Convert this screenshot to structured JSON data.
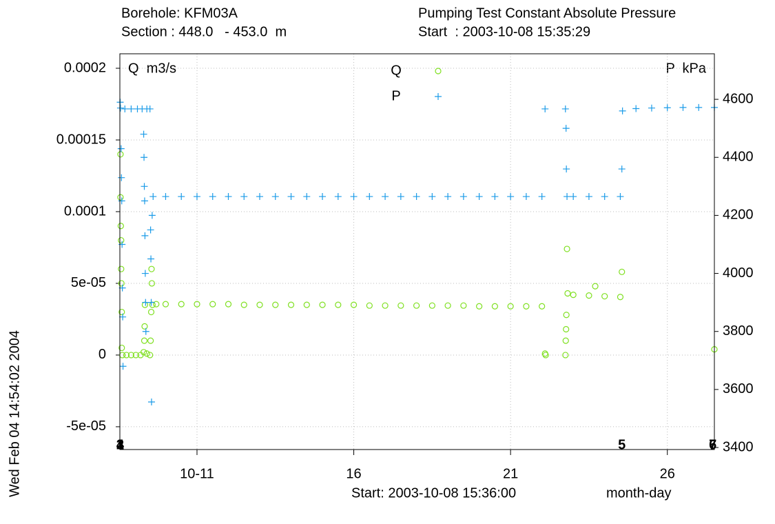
{
  "chart_data": {
    "type": "scatter",
    "header": {
      "borehole": "Borehole: KFM03A",
      "section": "Section : 448.0   - 453.0  m",
      "test": "Pumping Test Constant Absolute Pressure",
      "start": "Start  : 2003-10-08 15:35:29"
    },
    "y_label": "Q  m3/s",
    "y2_label": "P  kPa",
    "x_label": "month-day",
    "footer": "Start: 2003-10-08 15:36:00",
    "timestamp": "Wed Feb 04 14:54:02 2004",
    "xlim": [
      8.54,
      27.5
    ],
    "xticks": [
      {
        "value": 11,
        "label": "10-11"
      },
      16,
      21,
      26
    ],
    "ylim": [
      -6.59e-05,
      0.0002101
    ],
    "yticks": [
      {
        "value": -5e-05,
        "label": "-5e-05"
      },
      0,
      {
        "value": 5e-05,
        "label": "5e-05"
      },
      0.0001,
      0.00015,
      0.0002
    ],
    "y2lim": [
      3393,
      4757
    ],
    "y2ticks": [
      3400,
      3600,
      3800,
      4000,
      4200,
      4400,
      4600
    ],
    "grid": true,
    "markers": [
      {
        "x": 8.55,
        "label": "1"
      },
      {
        "x": 8.55,
        "label": "2"
      },
      {
        "x": 8.55,
        "label": "3"
      },
      {
        "x": 8.55,
        "label": "4"
      },
      {
        "x": 24.55,
        "label": "5"
      },
      {
        "x": 27.45,
        "label": "6"
      },
      {
        "x": 27.45,
        "label": "7"
      }
    ],
    "series": [
      {
        "name": "Q",
        "color": "#7fe020",
        "marker": "circle",
        "axis": "y",
        "x": [
          8.56,
          8.56,
          8.57,
          8.58,
          8.58,
          8.59,
          8.6,
          8.6,
          8.62,
          8.75,
          8.9,
          9.05,
          9.2,
          9.3,
          9.32,
          9.33,
          9.34,
          9.4,
          9.5,
          9.52,
          9.54,
          9.55,
          9.56,
          9.58,
          9.7,
          10,
          10.5,
          11,
          11.5,
          12,
          12.5,
          13,
          13.5,
          14,
          14.5,
          15,
          15.5,
          16,
          16.5,
          17,
          17.5,
          18,
          18.5,
          19,
          19.5,
          20,
          20.5,
          21,
          21.5,
          22,
          22.1,
          22.12,
          22.75,
          22.76,
          22.77,
          22.78,
          22.8,
          22.82,
          23,
          23.5,
          24,
          24.5,
          23.7,
          24.55,
          27.5
        ],
        "values": [
          0.00014,
          0.00011,
          9e-05,
          8e-05,
          6e-05,
          5e-05,
          3e-05,
          5e-06,
          0,
          0,
          0,
          0,
          0,
          2e-06,
          1e-05,
          2e-05,
          3.5e-05,
          1e-06,
          0,
          1e-05,
          3e-05,
          6e-05,
          5e-05,
          3.5e-05,
          3.55e-05,
          3.55e-05,
          3.55e-05,
          3.55e-05,
          3.55e-05,
          3.55e-05,
          3.5e-05,
          3.5e-05,
          3.5e-05,
          3.5e-05,
          3.5e-05,
          3.5e-05,
          3.5e-05,
          3.5e-05,
          3.45e-05,
          3.45e-05,
          3.45e-05,
          3.45e-05,
          3.45e-05,
          3.45e-05,
          3.45e-05,
          3.4e-05,
          3.4e-05,
          3.4e-05,
          3.4e-05,
          3.4e-05,
          1e-06,
          0,
          0,
          1e-05,
          1.8e-05,
          2.8e-05,
          7.4e-05,
          4.3e-05,
          4.2e-05,
          4.15e-05,
          4.1e-05,
          4.05e-05,
          4.8e-05,
          5.8e-05,
          4e-06
        ]
      },
      {
        "name": "P",
        "color": "#1a9be8",
        "marker": "plus",
        "axis": "y2",
        "x": [
          8.55,
          8.56,
          8.58,
          8.59,
          8.6,
          8.61,
          8.62,
          8.63,
          8.64,
          8.7,
          8.9,
          9.1,
          9.25,
          9.3,
          9.31,
          9.32,
          9.33,
          9.34,
          9.35,
          9.36,
          9.37,
          9.4,
          9.5,
          9.52,
          9.53,
          9.54,
          9.55,
          9.57,
          9.6,
          10,
          10.5,
          11,
          11.5,
          12,
          12.5,
          13,
          13.5,
          14,
          14.5,
          15,
          15.5,
          16,
          16.5,
          17,
          17.5,
          18,
          18.5,
          19,
          19.5,
          20,
          20.5,
          21,
          21.5,
          22,
          22.1,
          22.75,
          22.77,
          22.78,
          22.8,
          23,
          23.5,
          24,
          24.5,
          24.55,
          24.57,
          25,
          25.5,
          26,
          26.5,
          27,
          27.5
        ],
        "values": [
          4590,
          4570,
          4430,
          4330,
          4250,
          4100,
          3950,
          3850,
          3680,
          4567,
          4567,
          4567,
          4567,
          4480,
          4400,
          4300,
          4250,
          4130,
          4000,
          3900,
          3800,
          4567,
          4567,
          4150,
          4050,
          3900,
          3557,
          4200,
          4265,
          4265,
          4265,
          4265,
          4265,
          4265,
          4265,
          4265,
          4265,
          4265,
          4265,
          4265,
          4265,
          4265,
          4265,
          4265,
          4265,
          4265,
          4265,
          4265,
          4265,
          4265,
          4265,
          4265,
          4265,
          4265,
          4567,
          4567,
          4500,
          4360,
          4265,
          4265,
          4265,
          4265,
          4265,
          4360,
          4560,
          4568,
          4570,
          4571,
          4572,
          4572,
          4572
        ]
      }
    ]
  }
}
